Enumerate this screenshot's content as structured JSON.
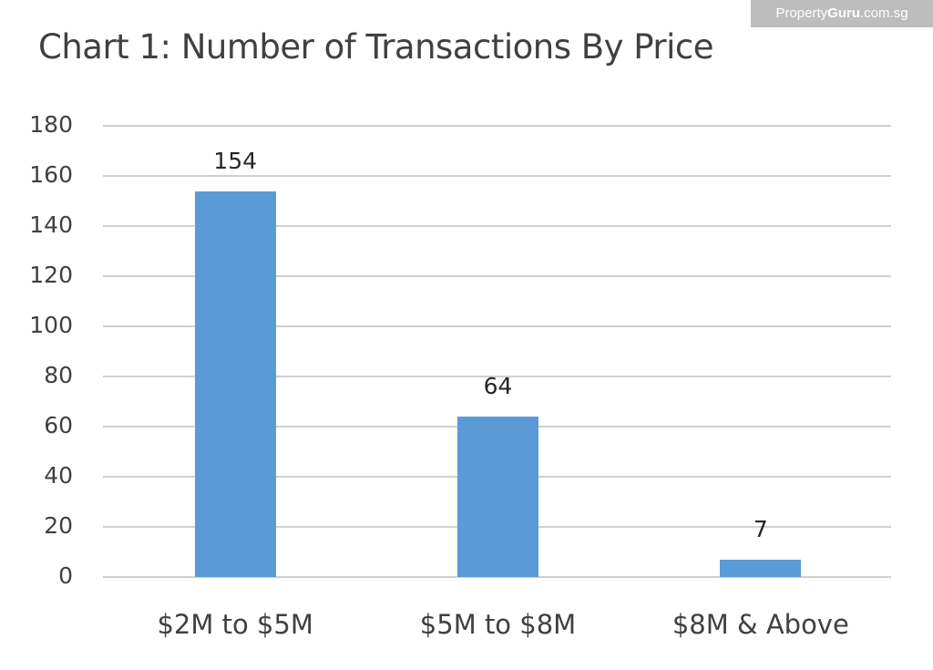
{
  "watermark": {
    "brand_prefix": "Property",
    "brand_bold": "Guru",
    "brand_suffix": ".com.sg"
  },
  "chart_data": {
    "type": "bar",
    "title": "Chart 1: Number of Transactions By Price",
    "categories": [
      "$2M to $5M",
      "$5M to $8M",
      "$8M & Above"
    ],
    "values": [
      154,
      64,
      7
    ],
    "data_labels": [
      "154",
      "64",
      "7"
    ],
    "xlabel": "",
    "ylabel": "",
    "ylim": [
      0,
      180
    ],
    "yticks": [
      "0",
      "20",
      "40",
      "60",
      "80",
      "100",
      "120",
      "140",
      "160",
      "180"
    ],
    "grid": true,
    "legend": null,
    "bar_color": "#5b9bd5"
  }
}
